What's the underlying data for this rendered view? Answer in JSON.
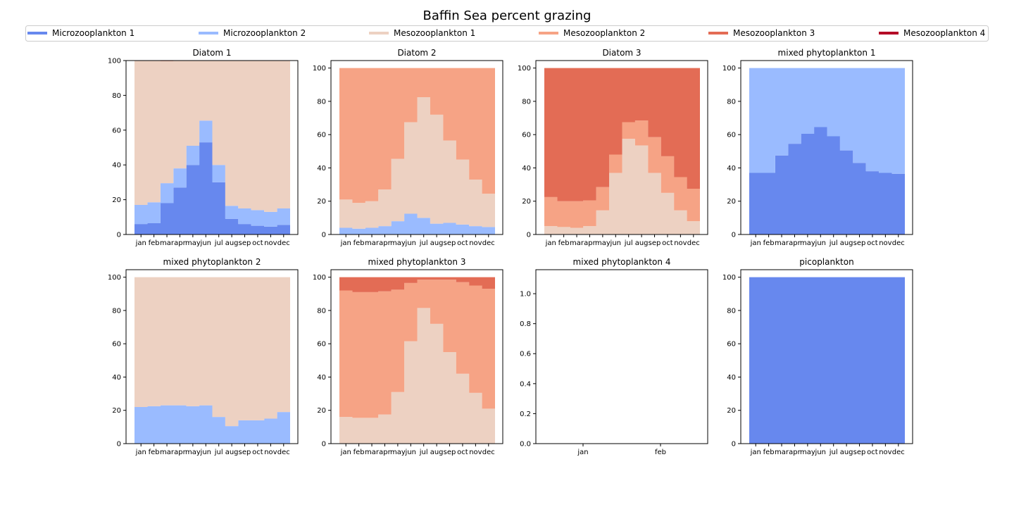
{
  "figure": {
    "title": "Baffin Sea percent grazing"
  },
  "legend": {
    "placement": "top",
    "entries": [
      {
        "name": "Microzooplankton 1",
        "color": "#6788ee"
      },
      {
        "name": "Microzooplankton 2",
        "color": "#9abbff"
      },
      {
        "name": "Mesozooplankton 1",
        "color": "#edd1c2"
      },
      {
        "name": "Mesozooplankton 2",
        "color": "#f6a385"
      },
      {
        "name": "Mesozooplankton 3",
        "color": "#e36c55"
      },
      {
        "name": "Mesozooplankton 4",
        "color": "#b40426"
      }
    ]
  },
  "chart_data": [
    {
      "type": "area",
      "title": "Diatom 1",
      "categories": [
        "jan",
        "feb",
        "mar",
        "apr",
        "may",
        "jun",
        "jul",
        "aug",
        "sep",
        "oct",
        "nov",
        "dec"
      ],
      "ylim": [
        0,
        100
      ],
      "yticks": [
        0,
        20,
        40,
        60,
        80,
        100
      ],
      "stacked": true,
      "series": [
        {
          "name": "Microzooplankton 1",
          "values": [
            6,
            6.5,
            18,
            27,
            40,
            53,
            30,
            9,
            6,
            5,
            4.5,
            5.5
          ]
        },
        {
          "name": "Microzooplankton 2",
          "values": [
            11,
            12,
            11.5,
            11,
            11,
            12.5,
            10,
            7.5,
            9,
            9,
            8.5,
            9.5
          ]
        },
        {
          "name": "Mesozooplankton 1",
          "values": [
            83,
            81.5,
            70.2,
            62,
            49,
            34.5,
            60,
            83.5,
            85,
            86,
            87,
            85
          ]
        },
        {
          "name": "Mesozooplankton 2",
          "values": [
            0,
            0,
            0,
            0,
            0,
            0,
            0,
            0,
            0,
            0,
            0,
            0
          ]
        },
        {
          "name": "Mesozooplankton 3",
          "values": [
            0,
            0,
            0.3,
            0,
            0,
            0,
            0,
            0,
            0,
            0,
            0,
            0
          ]
        },
        {
          "name": "Mesozooplankton 4",
          "values": [
            0,
            0,
            0,
            0,
            0,
            0,
            0,
            0,
            0,
            0,
            0,
            0
          ]
        }
      ]
    },
    {
      "type": "area",
      "title": "Diatom 2",
      "categories": [
        "jan",
        "feb",
        "mar",
        "apr",
        "may",
        "jun",
        "jul",
        "aug",
        "sep",
        "oct",
        "nov",
        "dec"
      ],
      "ylim": [
        0,
        104.5
      ],
      "yticks": [
        0,
        20,
        40,
        60,
        80,
        100
      ],
      "stacked": true,
      "series": [
        {
          "name": "Microzooplankton 1",
          "values": [
            0,
            0,
            0,
            0,
            0,
            0,
            0,
            0,
            0,
            0,
            0,
            0
          ]
        },
        {
          "name": "Microzooplankton 2",
          "values": [
            4,
            3.5,
            4,
            5,
            8,
            12.5,
            10,
            6.5,
            7,
            6,
            5,
            4.5
          ]
        },
        {
          "name": "Mesozooplankton 1",
          "values": [
            17,
            15.5,
            16,
            22,
            37.5,
            55,
            72.5,
            65.5,
            49.5,
            39,
            28,
            20
          ]
        },
        {
          "name": "Mesozooplankton 2",
          "values": [
            79,
            81,
            80,
            73,
            54.5,
            32.5,
            17.5,
            28,
            43.5,
            55,
            67,
            75.5
          ]
        },
        {
          "name": "Mesozooplankton 3",
          "values": [
            0,
            0,
            0,
            0,
            0,
            0,
            0,
            0,
            0,
            0,
            0,
            0
          ]
        },
        {
          "name": "Mesozooplankton 4",
          "values": [
            0,
            0,
            0,
            0,
            0,
            0,
            0,
            0,
            0,
            0,
            0,
            0
          ]
        }
      ]
    },
    {
      "type": "area",
      "title": "Diatom 3",
      "categories": [
        "jan",
        "feb",
        "mar",
        "apr",
        "may",
        "jun",
        "jul",
        "aug",
        "sep",
        "oct",
        "nov",
        "dec"
      ],
      "ylim": [
        0,
        104.5
      ],
      "yticks": [
        0,
        20,
        40,
        60,
        80,
        100
      ],
      "stacked": true,
      "series": [
        {
          "name": "Microzooplankton 1",
          "values": [
            0,
            0,
            0,
            0,
            0,
            0,
            0,
            0,
            0,
            0,
            0,
            0
          ]
        },
        {
          "name": "Microzooplankton 2",
          "values": [
            0,
            0,
            0,
            0,
            0,
            0,
            0,
            0,
            0,
            0,
            0,
            0
          ]
        },
        {
          "name": "Mesozooplankton 1",
          "values": [
            5,
            4.5,
            4,
            5,
            14.5,
            37,
            57.5,
            53.5,
            37,
            25,
            14.5,
            8
          ]
        },
        {
          "name": "Mesozooplankton 2",
          "values": [
            17.5,
            15.5,
            16,
            15.5,
            14,
            11,
            10,
            15,
            21.5,
            22,
            20,
            19.5
          ]
        },
        {
          "name": "Mesozooplankton 3",
          "values": [
            77.5,
            80,
            80,
            79.5,
            71.5,
            52,
            32.5,
            31.5,
            41.5,
            53,
            65.5,
            72.5
          ]
        },
        {
          "name": "Mesozooplankton 4",
          "values": [
            0,
            0,
            0,
            0,
            0,
            0,
            0,
            0,
            0,
            0,
            0,
            0
          ]
        }
      ]
    },
    {
      "type": "area",
      "title": "mixed phytoplankton 1",
      "categories": [
        "jan",
        "feb",
        "mar",
        "apr",
        "may",
        "jun",
        "jul",
        "aug",
        "sep",
        "oct",
        "nov",
        "dec"
      ],
      "ylim": [
        0,
        104.5
      ],
      "yticks": [
        0,
        20,
        40,
        60,
        80,
        100
      ],
      "stacked": true,
      "series": [
        {
          "name": "Microzooplankton 1",
          "values": [
            37,
            37,
            47.5,
            54.5,
            60.5,
            64.5,
            59,
            50.5,
            43,
            38,
            37,
            36.5
          ]
        },
        {
          "name": "Microzooplankton 2",
          "values": [
            63,
            63,
            52.5,
            45.5,
            39.5,
            35.5,
            41,
            49.5,
            57,
            62,
            63,
            63.5
          ]
        },
        {
          "name": "Mesozooplankton 1",
          "values": [
            0,
            0,
            0,
            0,
            0,
            0,
            0,
            0,
            0,
            0,
            0,
            0
          ]
        },
        {
          "name": "Mesozooplankton 2",
          "values": [
            0,
            0,
            0,
            0,
            0,
            0,
            0,
            0,
            0,
            0,
            0,
            0
          ]
        },
        {
          "name": "Mesozooplankton 3",
          "values": [
            0,
            0,
            0,
            0,
            0,
            0,
            0,
            0,
            0,
            0,
            0,
            0
          ]
        },
        {
          "name": "Mesozooplankton 4",
          "values": [
            0,
            0,
            0,
            0,
            0,
            0,
            0,
            0,
            0,
            0,
            0,
            0
          ]
        }
      ]
    },
    {
      "type": "area",
      "title": "mixed phytoplankton 2",
      "categories": [
        "jan",
        "feb",
        "mar",
        "apr",
        "may",
        "jun",
        "jul",
        "aug",
        "sep",
        "oct",
        "nov",
        "dec"
      ],
      "ylim": [
        0,
        104.5
      ],
      "yticks": [
        0,
        20,
        40,
        60,
        80,
        100
      ],
      "stacked": true,
      "series": [
        {
          "name": "Microzooplankton 1",
          "values": [
            0,
            0,
            0,
            0,
            0,
            0,
            0,
            0,
            0,
            0,
            0,
            0
          ]
        },
        {
          "name": "Microzooplankton 2",
          "values": [
            22,
            22.5,
            23,
            23,
            22.5,
            23,
            16,
            10.5,
            14,
            14,
            15,
            19
          ]
        },
        {
          "name": "Mesozooplankton 1",
          "values": [
            78,
            77.5,
            77,
            77,
            77.5,
            77,
            84,
            89.5,
            86,
            86,
            85,
            81
          ]
        },
        {
          "name": "Mesozooplankton 2",
          "values": [
            0,
            0,
            0,
            0,
            0,
            0,
            0,
            0,
            0,
            0,
            0,
            0
          ]
        },
        {
          "name": "Mesozooplankton 3",
          "values": [
            0,
            0,
            0,
            0,
            0,
            0,
            0,
            0,
            0,
            0,
            0,
            0
          ]
        },
        {
          "name": "Mesozooplankton 4",
          "values": [
            0,
            0,
            0,
            0,
            0,
            0,
            0,
            0,
            0,
            0,
            0,
            0
          ]
        }
      ]
    },
    {
      "type": "area",
      "title": "mixed phytoplankton 3",
      "categories": [
        "jan",
        "feb",
        "mar",
        "apr",
        "may",
        "jun",
        "jul",
        "aug",
        "sep",
        "oct",
        "nov",
        "dec"
      ],
      "ylim": [
        0,
        104.5
      ],
      "yticks": [
        0,
        20,
        40,
        60,
        80,
        100
      ],
      "stacked": true,
      "series": [
        {
          "name": "Microzooplankton 1",
          "values": [
            0,
            0,
            0,
            0,
            0,
            0,
            0,
            0,
            0,
            0,
            0,
            0
          ]
        },
        {
          "name": "Microzooplankton 2",
          "values": [
            0,
            0,
            0,
            0,
            0,
            0,
            0,
            0,
            0,
            0,
            0,
            0
          ]
        },
        {
          "name": "Mesozooplankton 1",
          "values": [
            16,
            15.5,
            15.5,
            17.5,
            31,
            61.5,
            81.5,
            72,
            55,
            42,
            30.5,
            21
          ]
        },
        {
          "name": "Mesozooplankton 2",
          "values": [
            76,
            75.5,
            75.5,
            74,
            61.5,
            35,
            17,
            26.5,
            43.5,
            55,
            64.5,
            72
          ]
        },
        {
          "name": "Mesozooplankton 3",
          "values": [
            8,
            9,
            9,
            8.5,
            7.5,
            3.5,
            1.5,
            1.5,
            1.5,
            3,
            5,
            7
          ]
        },
        {
          "name": "Mesozooplankton 4",
          "values": [
            0,
            0,
            0,
            0,
            0,
            0,
            0,
            0,
            0,
            0,
            0,
            0
          ]
        }
      ]
    },
    {
      "type": "area",
      "title": "mixed phytoplankton 4",
      "categories": [
        "jan",
        "feb"
      ],
      "ylim": [
        0,
        1.16
      ],
      "yticks": [
        0.0,
        0.2,
        0.4,
        0.6,
        0.8,
        1.0
      ],
      "ytick_labels": [
        "0.0",
        "0.2",
        "0.4",
        "0.6",
        "0.8",
        "1.0"
      ],
      "stacked": true,
      "empty": true,
      "series": []
    },
    {
      "type": "area",
      "title": "picoplankton",
      "categories": [
        "jan",
        "feb",
        "mar",
        "apr",
        "may",
        "jun",
        "jul",
        "aug",
        "sep",
        "oct",
        "nov",
        "dec"
      ],
      "ylim": [
        0,
        104.5
      ],
      "yticks": [
        0,
        20,
        40,
        60,
        80,
        100
      ],
      "stacked": true,
      "series": [
        {
          "name": "Microzooplankton 1",
          "values": [
            100,
            100,
            100,
            100,
            100,
            100,
            100,
            100,
            100,
            100,
            100,
            100
          ]
        },
        {
          "name": "Microzooplankton 2",
          "values": [
            0,
            0,
            0,
            0,
            0,
            0,
            0,
            0,
            0,
            0,
            0,
            0
          ]
        },
        {
          "name": "Mesozooplankton 1",
          "values": [
            0,
            0,
            0,
            0,
            0,
            0,
            0,
            0,
            0,
            0,
            0,
            0
          ]
        },
        {
          "name": "Mesozooplankton 2",
          "values": [
            0,
            0,
            0,
            0,
            0,
            0,
            0,
            0,
            0,
            0,
            0,
            0
          ]
        },
        {
          "name": "Mesozooplankton 3",
          "values": [
            0,
            0,
            0,
            0,
            0,
            0,
            0,
            0,
            0,
            0,
            0,
            0
          ]
        },
        {
          "name": "Mesozooplankton 4",
          "values": [
            0,
            0,
            0,
            0,
            0,
            0,
            0,
            0,
            0,
            0,
            0,
            0
          ]
        }
      ]
    }
  ]
}
